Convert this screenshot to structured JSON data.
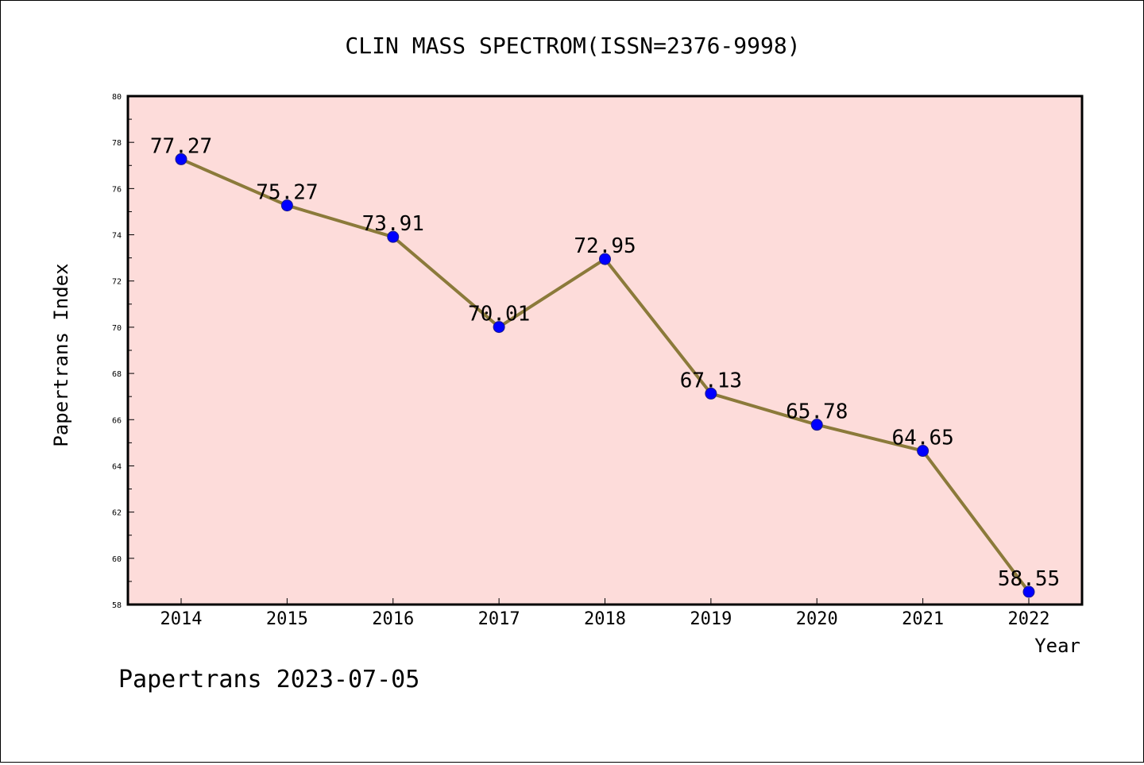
{
  "chart_data": {
    "type": "line",
    "title": "CLIN MASS SPECTROM(ISSN=2376-9998)",
    "xlabel": "Year",
    "ylabel": "Papertrans Index",
    "categories": [
      "2014",
      "2015",
      "2016",
      "2017",
      "2018",
      "2019",
      "2020",
      "2021",
      "2022"
    ],
    "series": [
      {
        "values": [
          77.27,
          75.27,
          73.91,
          70.01,
          72.95,
          67.13,
          65.78,
          64.65,
          58.55
        ]
      }
    ],
    "data_labels": [
      "77.27",
      "75.27",
      "73.91",
      "70.01",
      "72.95",
      "67.13",
      "65.78",
      "64.65",
      "58.55"
    ],
    "ylim": [
      58,
      80
    ],
    "yticks": [
      "58",
      "60",
      "62",
      "64",
      "66",
      "68",
      "70",
      "72",
      "74",
      "76",
      "78",
      "80"
    ],
    "grid": false,
    "colors": {
      "plot_background": "#fddcda",
      "line": "#8b7a3a",
      "marker": "#0000ff"
    }
  },
  "footer": "Papertrans 2023-07-05"
}
